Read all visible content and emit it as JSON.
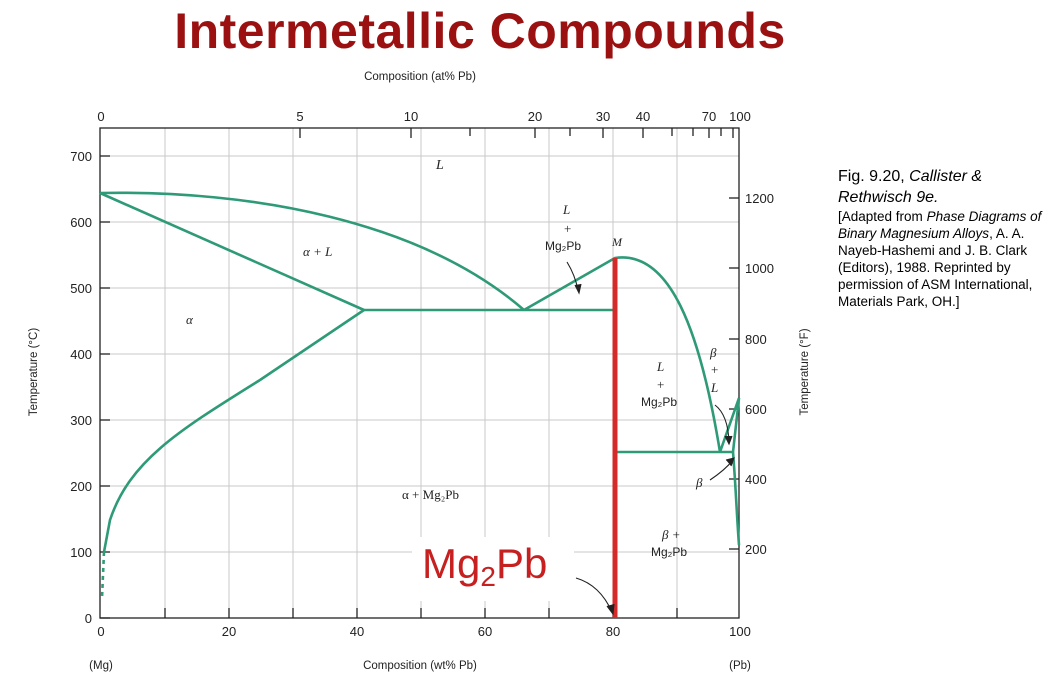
{
  "title": "Intermetallic Compounds",
  "colors": {
    "title": "#9b1111",
    "boundary": "#2e9a78",
    "compound_line": "#d42a2a",
    "grid": "#c8c8c8"
  },
  "top_axis": {
    "label": "Composition (at% Pb)",
    "ticks": [
      "0",
      "5",
      "10",
      "20",
      "30",
      "40",
      "70",
      "100"
    ]
  },
  "bottom_axis": {
    "label": "Composition (wt% Pb)",
    "ticks": [
      "0",
      "20",
      "40",
      "60",
      "80",
      "100"
    ],
    "left_end": "(Mg)",
    "right_end": "(Pb)"
  },
  "left_axis": {
    "label": "Temperature (°C)",
    "ticks": [
      "0",
      "100",
      "200",
      "300",
      "400",
      "500",
      "600",
      "700"
    ]
  },
  "right_axis": {
    "label": "Temperature (°F)",
    "ticks": [
      "200",
      "400",
      "600",
      "800",
      "1000",
      "1200"
    ]
  },
  "regions": {
    "liquid": "L",
    "alpha": "α",
    "alpha_liquid": "α  + L",
    "alpha_mg2pb": "α  + Mg₂Pb",
    "l_mg2pb_left_l": "L",
    "l_mg2pb_left_plus": "+",
    "l_mg2pb_left_compound": "Mg₂Pb",
    "point_m": "M",
    "l_mg2pb_right_l": "L",
    "l_mg2pb_right_plus": "+",
    "l_mg2pb_right_compound": "Mg₂Pb",
    "beta_l_beta": "β",
    "beta_l_plus": "+",
    "beta_l_l": "L",
    "beta": "β",
    "beta_mg2pb_beta": "β +",
    "beta_mg2pb_compound": "Mg₂Pb"
  },
  "compound_label": {
    "text": "Mg",
    "sub": "2",
    "suffix": "Pb"
  },
  "caption": {
    "fig": "Fig. 9.20, ",
    "fig_italic": "Callister & Rethwisch 9e.",
    "p1": "[Adapted from ",
    "p1_italic": "Phase Diagrams of Binary Magnesium Alloys",
    "p2": ", A. A. Nayeb-Hashemi and J. B. Clark (Editors), 1988. Reprinted by permission of ASM International, Materials Park, OH.]"
  }
}
